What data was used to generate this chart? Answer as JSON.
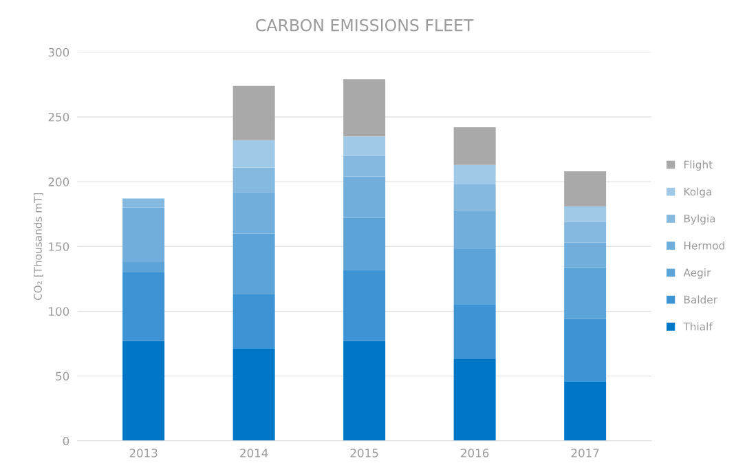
{
  "chart_data": {
    "type": "bar",
    "title": "CARBON EMISSIONS FLEET",
    "ylabel": "CO₂ [Thousands mT]",
    "categories": [
      "2013",
      "2014",
      "2015",
      "2016",
      "2017"
    ],
    "stacked": true,
    "series": [
      {
        "name": "Thialf",
        "color": "#0077c6",
        "values": [
          77,
          71,
          77,
          63,
          46
        ]
      },
      {
        "name": "Balder",
        "color": "#3d93d3",
        "values": [
          53,
          42,
          55,
          42,
          48
        ]
      },
      {
        "name": "Aegir",
        "color": "#5ca3d8",
        "values": [
          8,
          47,
          40,
          43,
          40
        ]
      },
      {
        "name": "Hermod",
        "color": "#72aedc",
        "values": [
          42,
          32,
          32,
          30,
          19
        ]
      },
      {
        "name": "Bylgia",
        "color": "#86b9e0",
        "values": [
          7,
          19,
          16,
          20,
          16
        ]
      },
      {
        "name": "Kolga",
        "color": "#a0c9e8",
        "values": [
          null,
          21,
          15,
          15,
          12
        ]
      },
      {
        "name": "Flight",
        "color": "#a9a9a9",
        "values": [
          null,
          42,
          44,
          29,
          27
        ]
      }
    ],
    "ylim": [
      0,
      300
    ],
    "yticks": [
      0,
      50,
      100,
      150,
      200,
      250,
      300
    ],
    "grid": "y",
    "legend": "right"
  }
}
